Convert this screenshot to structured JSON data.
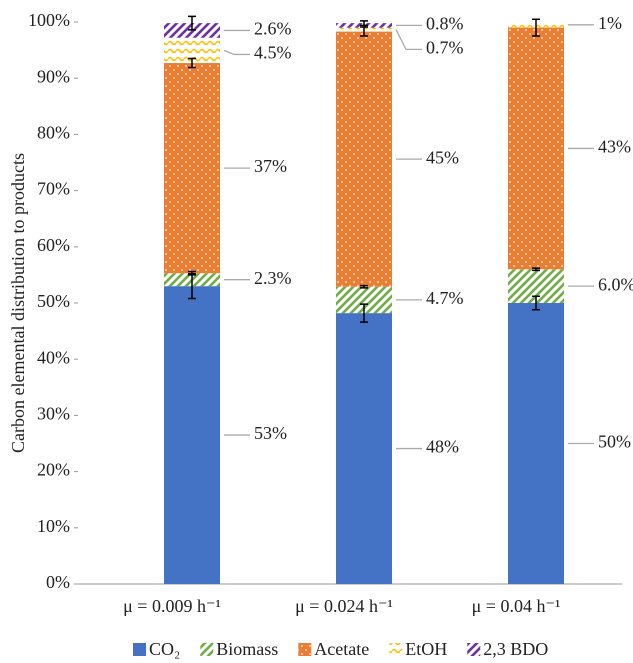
{
  "chart_data": {
    "type": "stacked_bar",
    "ylabel": "Carbon elemental distribution to products",
    "categories": [
      "μ = 0.009 h⁻¹",
      "μ = 0.024 h⁻¹",
      "μ = 0.04 h⁻¹"
    ],
    "ylim": [
      0,
      100
    ],
    "yticks": [
      {
        "value": 0,
        "label": "0%"
      },
      {
        "value": 10,
        "label": "10%"
      },
      {
        "value": 20,
        "label": "20%"
      },
      {
        "value": 30,
        "label": "30%"
      },
      {
        "value": 40,
        "label": "40%"
      },
      {
        "value": 50,
        "label": "50%"
      },
      {
        "value": 60,
        "label": "60%"
      },
      {
        "value": 70,
        "label": "70%"
      },
      {
        "value": 80,
        "label": "80%"
      },
      {
        "value": 90,
        "label": "90%"
      },
      {
        "value": 100,
        "label": "100%"
      }
    ],
    "legend": "bottom",
    "series": [
      {
        "name": "CO₂",
        "color": "#4472c4",
        "pattern": "solid",
        "values": [
          53.0,
          48.2,
          50.0
        ],
        "value_labels": [
          "53%",
          "48%",
          "50%"
        ],
        "errors": [
          2.2,
          1.6,
          1.2
        ]
      },
      {
        "name": "Biomass",
        "color": "#70ad47",
        "pattern": "stripes",
        "values": [
          2.3,
          4.7,
          6.0
        ],
        "value_labels": [
          "2.3%",
          "4.7%",
          "6.0%"
        ],
        "errors": [
          0.3,
          0.2,
          0.2
        ]
      },
      {
        "name": "Acetate",
        "color": "#ed7d31",
        "pattern": "dots",
        "values": [
          37.4,
          45.4,
          43.0
        ],
        "value_labels": [
          "37%",
          "45%",
          "43%"
        ],
        "errors": [
          0.8,
          0.8,
          1.5
        ]
      },
      {
        "name": "EtOH",
        "color": "#ffc000",
        "pattern": "waves",
        "values": [
          4.5,
          0.7,
          1.0
        ],
        "value_labels": [
          "4.5%",
          "0.7%",
          "1%"
        ]
      },
      {
        "name": "2,3 BDO",
        "color": "#7030a0",
        "pattern": "stripes",
        "values": [
          2.6,
          0.8,
          null
        ],
        "value_labels": [
          "2.6%",
          "0.8%",
          null
        ],
        "errors": [
          1.2,
          0.4,
          null
        ]
      }
    ]
  }
}
